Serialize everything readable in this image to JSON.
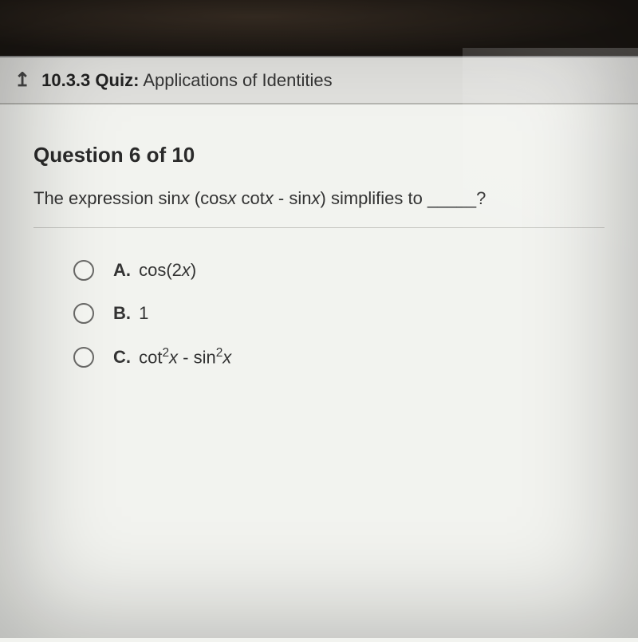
{
  "header": {
    "section_number": "10.3.3",
    "label_bold": "Quiz:",
    "label_rest": "Applications of Identities"
  },
  "question": {
    "number_text": "Question 6 of 10",
    "prompt_prefix": "The expression sin",
    "prompt_var1": "x",
    "prompt_mid1": " (cos",
    "prompt_var2": "x",
    "prompt_mid2": " cot",
    "prompt_var3": "x",
    "prompt_mid3": " - sin",
    "prompt_var4": "x",
    "prompt_suffix": ") simplifies to _____?"
  },
  "options": {
    "a": {
      "letter": "A.",
      "text_pre": "cos(2",
      "text_var": "x",
      "text_post": ")"
    },
    "b": {
      "letter": "B.",
      "text": "1"
    },
    "c": {
      "letter": "C.",
      "text_pre": "cot",
      "text_sup1": "2",
      "text_var1": "x",
      "text_mid": " - sin",
      "text_sup2": "2",
      "text_var2": "x"
    }
  },
  "colors": {
    "header_bg": "#e0e0dd",
    "content_bg": "#f2f3ef",
    "text": "#333333",
    "divider": "#c5c5c0",
    "radio_border": "#6a6a68"
  }
}
